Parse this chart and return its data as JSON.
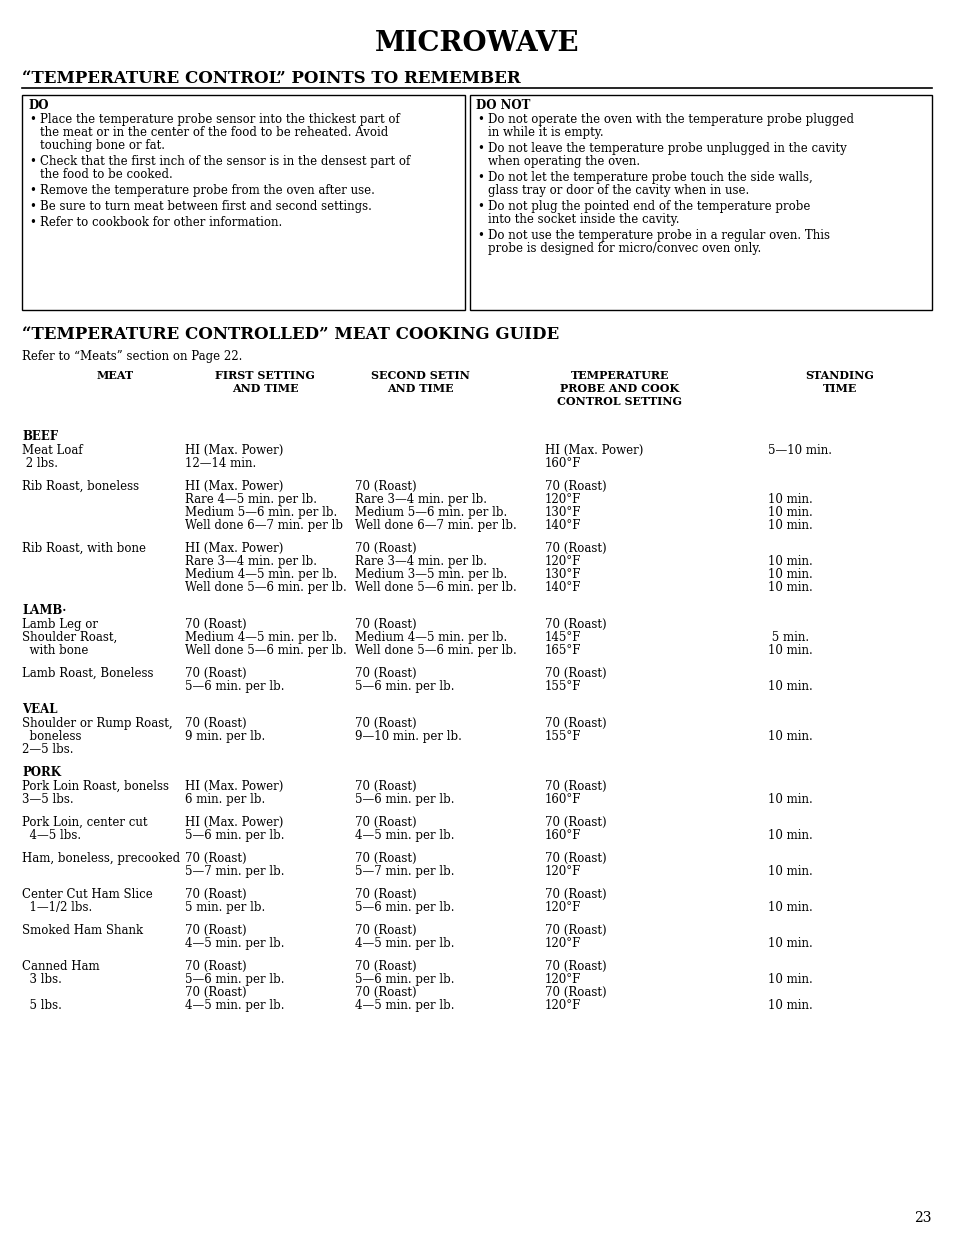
{
  "title": "MICROWAVE",
  "section1_title": "“TEMPERATURE CONTROL” POINTS TO REMEMBER",
  "do_title": "DO",
  "do_not_title": "DO NOT",
  "section2_title": "“TEMPERATURE CONTROLLED” MEAT COOKING GUIDE",
  "section2_subtitle": "Refer to “Meats” section on Page 22.",
  "page_number": "23",
  "do_items": [
    [
      "Place the temperature probe sensor into the thickest part of",
      "the meat or in the center of the food to be reheated. Avoid",
      "touching bone or fat."
    ],
    [
      "Check that the first inch of the sensor is in the densest part of",
      "the food to be cooked."
    ],
    [
      "Remove the temperature probe from the oven after use."
    ],
    [
      "Be sure to turn meat between first and second settings."
    ],
    [
      "Refer to cookbook for other information."
    ]
  ],
  "do_not_items": [
    [
      "Do not operate the oven with the temperature probe plugged",
      "in while it is empty."
    ],
    [
      "Do not leave the temperature probe unplugged in the cavity",
      "when operating the oven."
    ],
    [
      "Do not let the temperature probe touch the side walls,",
      "glass tray or door of the cavity when in use."
    ],
    [
      "Do not plug the pointed end of the temperature probe",
      "into the socket inside the cavity."
    ],
    [
      "Do not use the temperature probe in a regular oven. This",
      "probe is designed for micro/convec oven only."
    ]
  ],
  "rows": [
    {
      "category": "BEEF",
      "name": [
        "Meat Loaf",
        " 2 lbs."
      ],
      "first": [
        "HI (Max. Power)",
        "12—14 min."
      ],
      "second": [],
      "probe": [
        "HI (Max. Power)",
        "160°F"
      ],
      "standing": [
        "5—10 min."
      ]
    },
    {
      "category": "",
      "name": [
        "Rib Roast, boneless"
      ],
      "first": [
        "HI (Max. Power)",
        "Rare 4—5 min. per lb.",
        "Medium 5—6 min. per lb.",
        "Well done 6—7 min. per lb"
      ],
      "second": [
        "70 (Roast)",
        "Rare 3—4 min. per lb.",
        "Medium 5—6 min. per lb.",
        "Well done 6—7 min. per lb."
      ],
      "probe": [
        "70 (Roast)",
        "120°F",
        "130°F",
        "140°F"
      ],
      "standing": [
        "",
        "10 min.",
        "10 min.",
        "10 min."
      ]
    },
    {
      "category": "",
      "name": [
        "Rib Roast, with bone"
      ],
      "first": [
        "HI (Max. Power)",
        "Rare 3—4 min. per lb.",
        "Medium 4—5 min. per lb.",
        "Well done 5—6 min. per lb."
      ],
      "second": [
        "70 (Roast)",
        "Rare 3—4 min. per lb.",
        "Medium 3—5 min. per lb.",
        "Well done 5—6 min. per lb."
      ],
      "probe": [
        "70 (Roast)",
        "120°F",
        "130°F",
        "140°F"
      ],
      "standing": [
        "",
        "10 min.",
        "10 min.",
        "10 min."
      ]
    },
    {
      "category": "LAMB·",
      "name": [
        "Lamb Leg or",
        "Shoulder Roast,",
        "  with bone"
      ],
      "first": [
        "70 (Roast)",
        "Medium 4—5 min. per lb.",
        "Well done 5—6 min. per lb."
      ],
      "second": [
        "70 (Roast)",
        "Medium 4—5 min. per lb.",
        "Well done 5—6 min. per lb."
      ],
      "probe": [
        "70 (Roast)",
        "145°F",
        "165°F"
      ],
      "standing": [
        "",
        " 5 min.",
        "10 min."
      ]
    },
    {
      "category": "",
      "name": [
        "Lamb Roast, Boneless"
      ],
      "first": [
        "70 (Roast)",
        "5—6 min. per lb."
      ],
      "second": [
        "70 (Roast)",
        "5—6 min. per lb."
      ],
      "probe": [
        "70 (Roast)",
        "155°F"
      ],
      "standing": [
        "",
        "10 min."
      ]
    },
    {
      "category": "VEAL",
      "name": [
        "Shoulder or Rump Roast,",
        "  boneless",
        "2—5 lbs."
      ],
      "first": [
        "70 (Roast)",
        "9 min. per lb."
      ],
      "second": [
        "70 (Roast)",
        "9—10 min. per lb."
      ],
      "probe": [
        "70 (Roast)",
        "155°F"
      ],
      "standing": [
        "",
        "10 min."
      ]
    },
    {
      "category": "PORK",
      "name": [
        "Pork Loin Roast, bonelss",
        "3—5 lbs."
      ],
      "first": [
        "HI (Max. Power)",
        "6 min. per lb."
      ],
      "second": [
        "70 (Roast)",
        "5—6 min. per lb."
      ],
      "probe": [
        "70 (Roast)",
        "160°F"
      ],
      "standing": [
        "",
        "10 min."
      ]
    },
    {
      "category": "",
      "name": [
        "Pork Loin, center cut",
        "  4—5 lbs."
      ],
      "first": [
        "HI (Max. Power)",
        "5—6 min. per lb."
      ],
      "second": [
        "70 (Roast)",
        "4—5 min. per lb."
      ],
      "probe": [
        "70 (Roast)",
        "160°F"
      ],
      "standing": [
        "",
        "10 min."
      ]
    },
    {
      "category": "",
      "name": [
        "Ham, boneless, precooked"
      ],
      "first": [
        "70 (Roast)",
        "5—7 min. per lb."
      ],
      "second": [
        "70 (Roast)",
        "5—7 min. per lb."
      ],
      "probe": [
        "70 (Roast)",
        "120°F"
      ],
      "standing": [
        "",
        "10 min."
      ]
    },
    {
      "category": "",
      "name": [
        "Center Cut Ham Slice",
        "  1—1/2 lbs."
      ],
      "first": [
        "70 (Roast)",
        "5 min. per lb."
      ],
      "second": [
        "70 (Roast)",
        "5—6 min. per lb."
      ],
      "probe": [
        "70 (Roast)",
        "120°F"
      ],
      "standing": [
        "",
        "10 min."
      ]
    },
    {
      "category": "",
      "name": [
        "Smoked Ham Shank"
      ],
      "first": [
        "70 (Roast)",
        "4—5 min. per lb."
      ],
      "second": [
        "70 (Roast)",
        "4—5 min. per lb."
      ],
      "probe": [
        "70 (Roast)",
        "120°F"
      ],
      "standing": [
        "",
        "10 min."
      ]
    },
    {
      "category": "",
      "name": [
        "Canned Ham",
        "  3 lbs.",
        "",
        "  5 lbs."
      ],
      "first": [
        "70 (Roast)",
        "5—6 min. per lb.",
        "70 (Roast)",
        "4—5 min. per lb."
      ],
      "second": [
        "70 (Roast)",
        "5—6 min. per lb.",
        "70 (Roast)",
        "4—5 min. per lb."
      ],
      "probe": [
        "70 (Roast)",
        "120°F",
        "70 (Roast)",
        "120°F"
      ],
      "standing": [
        "",
        "10 min.",
        "",
        "10 min."
      ]
    }
  ]
}
